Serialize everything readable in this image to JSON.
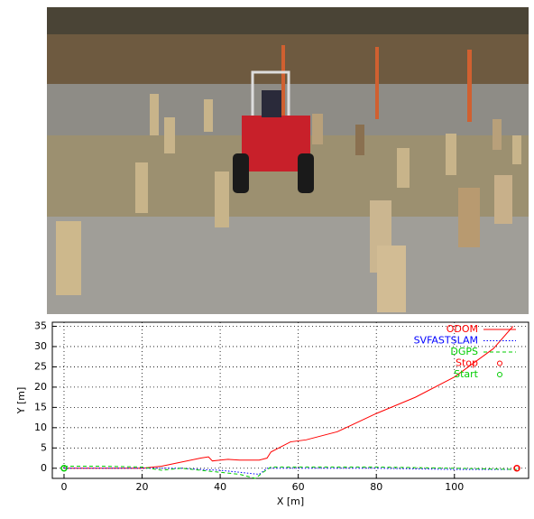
{
  "chart_data": {
    "type": "line",
    "xlabel": "X [m]",
    "ylabel": "Y [m]",
    "xlim": [
      -3,
      119
    ],
    "ylim": [
      -2.5,
      36
    ],
    "xticks": [
      0,
      20,
      40,
      60,
      80,
      100
    ],
    "yticks": [
      0,
      5,
      10,
      15,
      20,
      25,
      30,
      35
    ],
    "grid": true,
    "legend": "upper right",
    "series": [
      {
        "name": "ODOM",
        "color": "#ff0000",
        "style": "solid",
        "x": [
          0,
          10,
          20,
          25,
          30,
          35,
          37,
          38,
          40,
          42,
          45,
          50,
          52,
          53,
          55,
          58,
          62,
          70,
          80,
          90,
          100,
          110,
          115
        ],
        "values": [
          0,
          0,
          0,
          0.5,
          1.5,
          2.5,
          2.8,
          1.8,
          2,
          2.2,
          2,
          2,
          2.5,
          4,
          5,
          6.5,
          7,
          9,
          13.5,
          17.5,
          22.5,
          29.5,
          35
        ]
      },
      {
        "name": "SVFASTSLAM",
        "color": "#0000ff",
        "style": "dotted",
        "x": [
          0,
          20,
          30,
          35,
          40,
          45,
          50,
          52,
          60,
          80,
          100,
          115
        ],
        "values": [
          0,
          0,
          0,
          -0.3,
          -0.5,
          -1,
          -1.5,
          0,
          0,
          0,
          -0.3,
          -0.3
        ]
      },
      {
        "name": "DGPS",
        "color": "#00cc00",
        "style": "dashed",
        "x": [
          0,
          10,
          20,
          25,
          30,
          35,
          40,
          45,
          49,
          51,
          53,
          60,
          80,
          100,
          116
        ],
        "values": [
          0.5,
          0.5,
          0.3,
          -0.5,
          0,
          -0.5,
          -1,
          -1.5,
          -2.5,
          -1,
          0.3,
          0.3,
          0.3,
          0,
          -0.3
        ]
      },
      {
        "name": "Stop",
        "color": "#ff0000",
        "style": "points",
        "x": [
          116
        ],
        "values": [
          0
        ]
      },
      {
        "name": "Start",
        "color": "#00cc00",
        "style": "points",
        "x": [
          0
        ],
        "values": [
          0
        ]
      }
    ]
  }
}
